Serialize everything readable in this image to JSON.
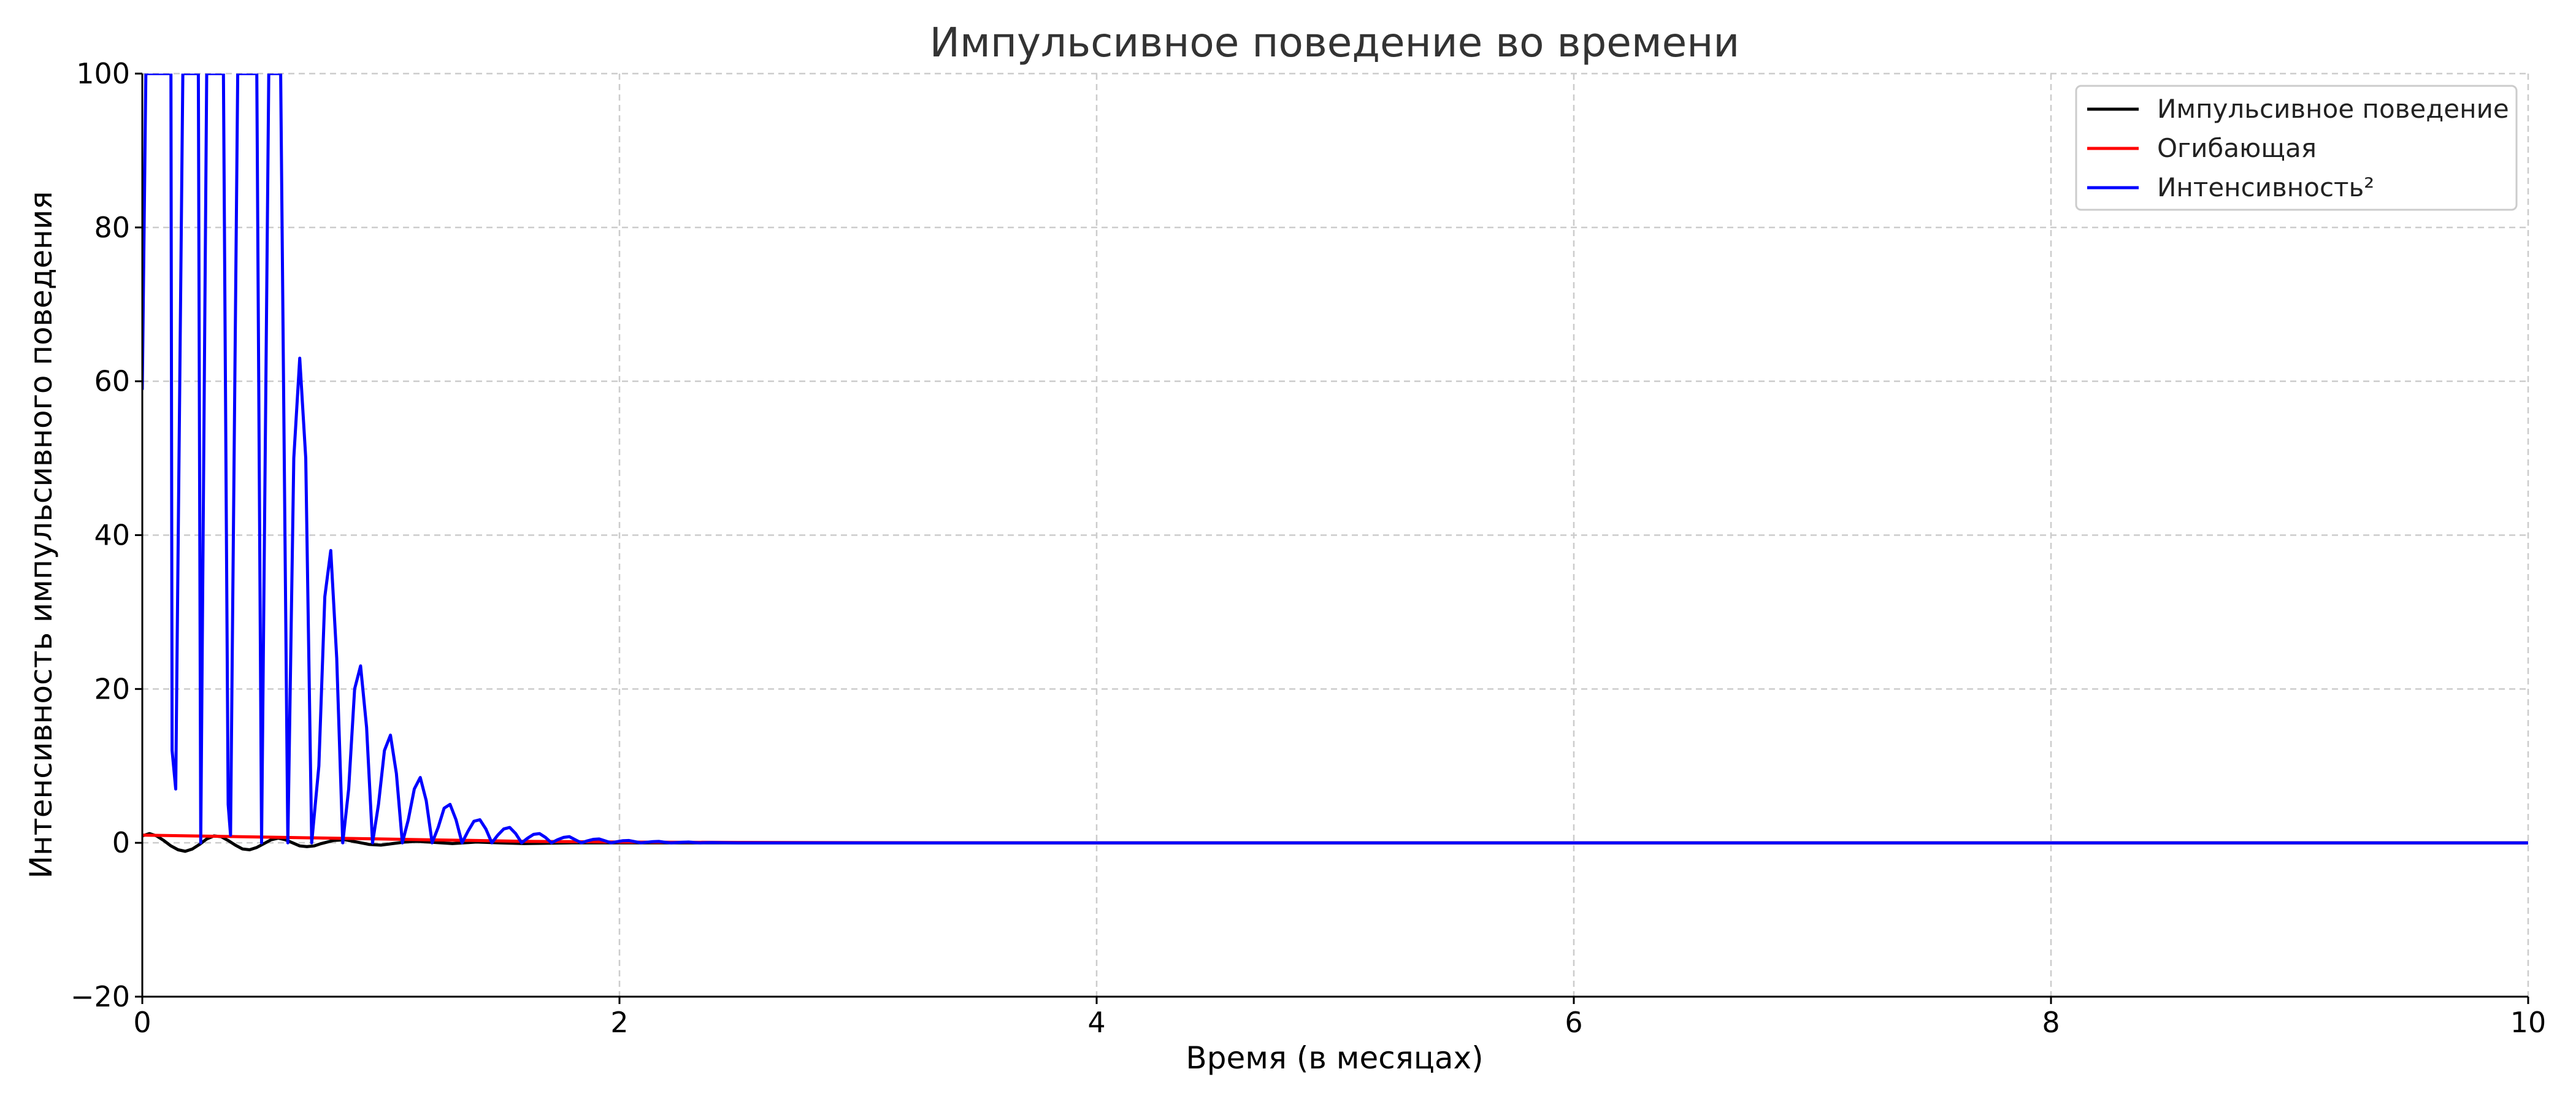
{
  "chart_data": {
    "type": "line",
    "title": "Импульсивное поведение во времени",
    "xlabel": "Время (в месяцах)",
    "ylabel": "Интенсивность импульсивного поведения",
    "xlim": [
      0,
      10
    ],
    "ylim": [
      -20,
      100
    ],
    "x_ticks": [
      0,
      2,
      4,
      6,
      8,
      10
    ],
    "y_ticks": [
      -20,
      0,
      20,
      40,
      60,
      80,
      100
    ],
    "x_tick_labels": [
      "0",
      "2",
      "4",
      "6",
      "8",
      "10"
    ],
    "y_tick_labels": [
      "−20",
      "0",
      "20",
      "40",
      "60",
      "80",
      "100"
    ],
    "grid": true,
    "legend_position": "top-right",
    "series": [
      {
        "name": "Импульсивное поведение",
        "color": "#000000",
        "x": [
          0,
          0.03,
          0.06,
          0.09,
          0.12,
          0.15,
          0.18,
          0.21,
          0.24,
          0.27,
          0.3,
          0.33,
          0.36,
          0.39,
          0.42,
          0.45,
          0.48,
          0.51,
          0.54,
          0.57,
          0.6,
          0.63,
          0.66,
          0.69,
          0.72,
          0.75,
          0.8,
          0.85,
          0.9,
          0.95,
          1.0,
          1.05,
          1.1,
          1.15,
          1.2,
          1.3,
          1.4,
          1.5,
          1.6,
          1.8,
          2.0,
          2.5,
          3,
          4,
          5,
          6,
          7,
          8,
          9,
          10
        ],
        "y": [
          0.9,
          1.2,
          0.9,
          0.3,
          -0.4,
          -0.9,
          -1.1,
          -0.8,
          -0.2,
          0.5,
          0.9,
          0.8,
          0.3,
          -0.3,
          -0.8,
          -0.9,
          -0.6,
          -0.1,
          0.4,
          0.6,
          0.4,
          0.0,
          -0.4,
          -0.5,
          -0.4,
          -0.1,
          0.3,
          0.4,
          0.1,
          -0.2,
          -0.3,
          -0.1,
          0.1,
          0.2,
          0.1,
          -0.1,
          0.1,
          0.0,
          -0.1,
          0.0,
          0.0,
          0,
          0,
          0,
          0,
          0,
          0,
          0,
          0,
          0
        ]
      },
      {
        "name": "Огибающая",
        "color": "#ff0000",
        "x": [
          0,
          0.2,
          0.4,
          0.6,
          0.8,
          1.0,
          1.2,
          1.4,
          1.6,
          1.8,
          2.0,
          2.5,
          3,
          4,
          5,
          6,
          7,
          8,
          9,
          10
        ],
        "y": [
          1.0,
          0.9,
          0.8,
          0.7,
          0.6,
          0.5,
          0.4,
          0.3,
          0.2,
          0.15,
          0.1,
          0.05,
          0.02,
          0,
          0,
          0,
          0,
          0,
          0,
          0
        ]
      },
      {
        "name": "Интенсивность²",
        "color": "#0000ff",
        "x": [
          0,
          0.015,
          0.04,
          0.06,
          0.09,
          0.12,
          0.125,
          0.14,
          0.17,
          0.21,
          0.235,
          0.245,
          0.27,
          0.31,
          0.34,
          0.36,
          0.37,
          0.4,
          0.44,
          0.46,
          0.48,
          0.5,
          0.53,
          0.56,
          0.58,
          0.61,
          0.635,
          0.66,
          0.685,
          0.71,
          0.74,
          0.765,
          0.79,
          0.815,
          0.84,
          0.865,
          0.89,
          0.915,
          0.94,
          0.965,
          0.99,
          1.015,
          1.04,
          1.065,
          1.09,
          1.115,
          1.14,
          1.165,
          1.19,
          1.215,
          1.24,
          1.265,
          1.29,
          1.315,
          1.34,
          1.365,
          1.39,
          1.415,
          1.44,
          1.465,
          1.49,
          1.515,
          1.54,
          1.565,
          1.59,
          1.615,
          1.64,
          1.665,
          1.69,
          1.715,
          1.74,
          1.765,
          1.79,
          1.815,
          1.84,
          1.865,
          1.89,
          1.915,
          1.94,
          1.965,
          1.99,
          2.015,
          2.04,
          2.065,
          2.09,
          2.115,
          2.14,
          2.165,
          2.19,
          2.215,
          2.24,
          2.265,
          2.29,
          2.315,
          2.34,
          2.365,
          2.39,
          2.44,
          2.5,
          2.7,
          3,
          4,
          5,
          6,
          7,
          8,
          9,
          10
        ],
        "y": [
          59,
          100,
          100,
          100,
          100,
          100,
          12,
          7,
          100,
          100,
          100,
          0,
          100,
          100,
          100,
          5,
          1,
          100,
          100,
          100,
          100,
          0,
          100,
          100,
          100,
          0,
          50,
          63,
          50,
          0,
          10,
          32,
          38,
          24,
          0,
          7,
          20,
          23,
          15,
          0,
          5,
          12,
          14,
          9,
          0,
          3,
          7,
          8.5,
          5.5,
          0,
          2,
          4.5,
          5,
          3,
          0,
          1.5,
          2.8,
          3,
          1.8,
          0,
          1,
          1.8,
          2,
          1.2,
          0,
          0.6,
          1.1,
          1.2,
          0.7,
          0,
          0.4,
          0.7,
          0.8,
          0.4,
          0,
          0.25,
          0.45,
          0.5,
          0.25,
          0,
          0.15,
          0.28,
          0.3,
          0.15,
          0,
          0.08,
          0.15,
          0.18,
          0.08,
          0,
          0.04,
          0.08,
          0.1,
          0.04,
          0,
          0.02,
          0.04,
          0.01,
          0,
          0,
          0,
          0,
          0,
          0,
          0,
          0,
          0,
          0
        ]
      }
    ]
  }
}
